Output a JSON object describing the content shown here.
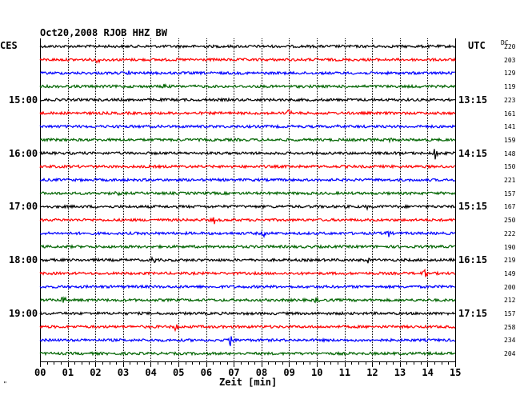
{
  "header": {
    "title": "Oct20,2008   RJOB HHZ BW",
    "left_tz": "CES",
    "right_tz": "UTC",
    "dc_header": "DC"
  },
  "footer": {
    "xlabel": "Zeit [min]",
    "corner_mark": "\""
  },
  "chart_data": {
    "type": "line",
    "title": "Oct20,2008   RJOB HHZ BW",
    "xlabel": "Zeit [min]",
    "ylabel": "",
    "xlim": [
      0,
      15
    ],
    "x_ticks": [
      "00",
      "01",
      "02",
      "03",
      "04",
      "05",
      "06",
      "07",
      "08",
      "09",
      "10",
      "11",
      "12",
      "13",
      "14",
      "15"
    ],
    "grid": true,
    "trace_colors": [
      "#000000",
      "#ff0000",
      "#0000ff",
      "#006400"
    ],
    "left_time_labels": [
      {
        "row": 4,
        "label": "15:00"
      },
      {
        "row": 8,
        "label": "16:00"
      },
      {
        "row": 12,
        "label": "17:00"
      },
      {
        "row": 16,
        "label": "18:00"
      },
      {
        "row": 20,
        "label": "19:00"
      }
    ],
    "right_time_labels": [
      {
        "row": 4,
        "label": "13:15"
      },
      {
        "row": 8,
        "label": "14:15"
      },
      {
        "row": 12,
        "label": "15:15"
      },
      {
        "row": 16,
        "label": "16:15"
      },
      {
        "row": 20,
        "label": "17:15"
      }
    ],
    "dc_values": [
      "220",
      "203",
      "129",
      "119",
      "223",
      "161",
      "141",
      "159",
      "148",
      "150",
      "221",
      "157",
      "167",
      "250",
      "222",
      "190",
      "219",
      "149",
      "200",
      "212",
      "157",
      "258",
      "234",
      "204"
    ],
    "events": [
      {
        "row": 1,
        "x": 2.1,
        "amp": 0.6
      },
      {
        "row": 2,
        "x": 3.2,
        "amp": 0.4
      },
      {
        "row": 3,
        "x": 4.5,
        "amp": 0.5
      },
      {
        "row": 5,
        "x": 9.0,
        "amp": 0.8
      },
      {
        "row": 6,
        "x": 10.8,
        "amp": 0.6
      },
      {
        "row": 7,
        "x": 12.6,
        "amp": 0.6
      },
      {
        "row": 8,
        "x": 14.3,
        "amp": 1.6
      },
      {
        "row": 8,
        "x": 13.0,
        "amp": 0.4
      },
      {
        "row": 11,
        "x": 2.8,
        "amp": 0.8
      },
      {
        "row": 12,
        "x": 11.8,
        "amp": 0.4
      },
      {
        "row": 13,
        "x": 6.3,
        "amp": 0.6
      },
      {
        "row": 14,
        "x": 8.1,
        "amp": 0.5
      },
      {
        "row": 14,
        "x": 12.6,
        "amp": 0.7
      },
      {
        "row": 16,
        "x": 4.1,
        "amp": 0.8
      },
      {
        "row": 16,
        "x": 11.9,
        "amp": 0.7
      },
      {
        "row": 17,
        "x": 13.9,
        "amp": 0.7
      },
      {
        "row": 19,
        "x": 0.85,
        "amp": 1.0
      },
      {
        "row": 19,
        "x": 10.0,
        "amp": 0.5
      },
      {
        "row": 21,
        "x": 4.9,
        "amp": 1.2
      },
      {
        "row": 22,
        "x": 6.9,
        "amp": 1.6
      }
    ]
  }
}
